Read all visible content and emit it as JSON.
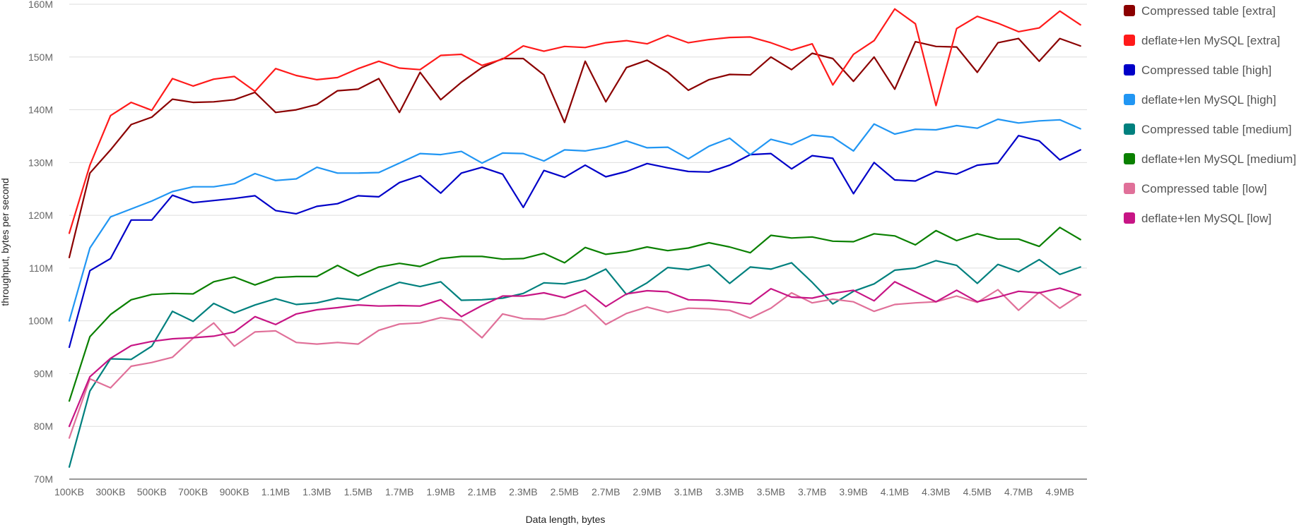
{
  "chart_data": {
    "type": "line",
    "title": "",
    "xlabel": "Data length, bytes",
    "ylabel": "throughput, bytes per second",
    "ylim": [
      70,
      160
    ],
    "y_unit": "M",
    "y_ticks": [
      "70M",
      "80M",
      "90M",
      "100M",
      "110M",
      "120M",
      "130M",
      "140M",
      "150M",
      "160M"
    ],
    "x_tick_labels": [
      "100KB",
      "300KB",
      "500KB",
      "700KB",
      "900KB",
      "1.1MB",
      "1.3MB",
      "1.5MB",
      "1.7MB",
      "1.9MB",
      "2.1MB",
      "2.3MB",
      "2.5MB",
      "2.7MB",
      "2.9MB",
      "3.1MB",
      "3.3MB",
      "3.5MB",
      "3.7MB",
      "3.9MB",
      "4.1MB",
      "4.3MB",
      "4.5MB",
      "4.7MB",
      "4.9MB"
    ],
    "x": [
      "100KB",
      "200KB",
      "300KB",
      "400KB",
      "500KB",
      "600KB",
      "700KB",
      "800KB",
      "900KB",
      "1MB",
      "1.1MB",
      "1.2MB",
      "1.3MB",
      "1.4MB",
      "1.5MB",
      "1.6MB",
      "1.7MB",
      "1.8MB",
      "1.9MB",
      "2MB",
      "2.1MB",
      "2.2MB",
      "2.3MB",
      "2.4MB",
      "2.5MB",
      "2.6MB",
      "2.7MB",
      "2.8MB",
      "2.9MB",
      "3MB",
      "3.1MB",
      "3.2MB",
      "3.3MB",
      "3.4MB",
      "3.5MB",
      "3.6MB",
      "3.7MB",
      "3.8MB",
      "3.9MB",
      "4MB",
      "4.1MB",
      "4.2MB",
      "4.3MB",
      "4.4MB",
      "4.5MB",
      "4.6MB",
      "4.7MB",
      "4.8MB",
      "4.9MB",
      "5MB"
    ],
    "grid": true,
    "legend": "right",
    "series": [
      {
        "name": "Compressed table [extra]",
        "color": "#8b0000",
        "values": [
          112,
          128,
          132.4,
          137.2,
          138.6,
          142,
          141.4,
          141.5,
          141.9,
          143.3,
          139.5,
          140,
          141,
          143.6,
          143.9,
          145.9,
          139.5,
          147.1,
          141.9,
          145.2,
          148,
          149.7,
          149.7,
          146.6,
          137.6,
          149.2,
          141.5,
          148,
          149.4,
          147.1,
          143.7,
          145.7,
          146.7,
          146.6,
          150,
          147.6,
          150.7,
          149.7,
          145.4,
          150,
          143.9,
          152.9,
          152,
          151.9,
          147.1,
          152.7,
          153.5,
          149.2,
          153.5,
          152.1
        ]
      },
      {
        "name": "deflate+len MySQL [extra]",
        "color": "#ff1a1a",
        "values": [
          116.6,
          129.5,
          138.9,
          141.4,
          139.9,
          145.9,
          144.5,
          145.8,
          146.3,
          143.5,
          147.8,
          146.5,
          145.7,
          146.1,
          147.8,
          149.2,
          147.9,
          147.6,
          150.3,
          150.5,
          148.4,
          149.6,
          152.1,
          151.1,
          152,
          151.8,
          152.7,
          153.1,
          152.5,
          154.1,
          152.7,
          153.3,
          153.7,
          153.8,
          152.7,
          151.3,
          152.5,
          144.7,
          150.5,
          153.1,
          159.1,
          156.3,
          140.8,
          155.4,
          157.7,
          156.4,
          154.8,
          155.5,
          158.7,
          156.1
        ]
      },
      {
        "name": "Compressed table [high]",
        "color": "#0000c8",
        "values": [
          95,
          109.5,
          111.8,
          119.1,
          119.1,
          123.8,
          122.4,
          122.8,
          123.2,
          123.7,
          120.9,
          120.3,
          121.7,
          122.2,
          123.7,
          123.5,
          126.2,
          127.5,
          124.2,
          128,
          129.1,
          127.8,
          121.5,
          128.5,
          127.2,
          129.5,
          127.3,
          128.3,
          129.8,
          129,
          128.3,
          128.2,
          129.5,
          131.5,
          131.7,
          128.8,
          131.3,
          130.8,
          124.1,
          130,
          126.7,
          126.5,
          128.3,
          127.8,
          129.5,
          129.9,
          135.1,
          134.1,
          130.5,
          132.4
        ]
      },
      {
        "name": "deflate+len MySQL [high]",
        "color": "#2196f3",
        "values": [
          100,
          113.8,
          119.7,
          121.2,
          122.7,
          124.5,
          125.4,
          125.4,
          126,
          127.9,
          126.6,
          126.9,
          129.1,
          128,
          128,
          128.1,
          129.9,
          131.7,
          131.5,
          132.1,
          129.9,
          131.8,
          131.7,
          130.3,
          132.4,
          132.2,
          132.9,
          134.1,
          132.8,
          132.9,
          130.7,
          133.1,
          134.6,
          131.5,
          134.4,
          133.4,
          135.2,
          134.8,
          132.2,
          137.3,
          135.4,
          136.3,
          136.2,
          137,
          136.5,
          138.2,
          137.5,
          137.9,
          138.1,
          136.4
        ]
      },
      {
        "name": "Compressed table [medium]",
        "color": "#00807e",
        "values": [
          72.3,
          86.7,
          92.8,
          92.7,
          95.2,
          101.8,
          99.9,
          103.3,
          101.5,
          103,
          104.2,
          103.1,
          103.4,
          104.3,
          103.9,
          105.7,
          107.3,
          106.5,
          107.4,
          103.9,
          104,
          104.3,
          105.2,
          107.2,
          107,
          107.9,
          109.8,
          105,
          107.2,
          110.1,
          109.7,
          110.6,
          107.1,
          110.2,
          109.8,
          111,
          107.3,
          103.2,
          105.6,
          107,
          109.6,
          110,
          111.4,
          110.5,
          107.1,
          110.7,
          109.3,
          111.6,
          108.8,
          110.2
        ]
      },
      {
        "name": "deflate+len MySQL [medium]",
        "color": "#0a8000",
        "values": [
          84.8,
          97,
          101.2,
          104,
          105,
          105.2,
          105.1,
          107.4,
          108.3,
          106.8,
          108.2,
          108.4,
          108.4,
          110.5,
          108.5,
          110.2,
          110.9,
          110.3,
          111.8,
          112.2,
          112.2,
          111.7,
          111.8,
          112.8,
          111,
          113.9,
          112.6,
          113.1,
          114,
          113.3,
          113.8,
          114.8,
          114,
          112.9,
          116.2,
          115.7,
          115.9,
          115.1,
          115,
          116.5,
          116.1,
          114.4,
          117.1,
          115.2,
          116.5,
          115.5,
          115.5,
          114.1,
          117.7,
          115.4
        ]
      },
      {
        "name": "Compressed table [low]",
        "color": "#e07099",
        "values": [
          77.8,
          89,
          87.3,
          91.4,
          92.1,
          93.1,
          96.7,
          99.6,
          95.2,
          97.9,
          98.1,
          95.9,
          95.6,
          95.9,
          95.6,
          98.2,
          99.4,
          99.6,
          100.6,
          100.1,
          96.8,
          101.3,
          100.4,
          100.3,
          101.2,
          103,
          99.3,
          101.4,
          102.6,
          101.6,
          102.4,
          102.3,
          102,
          100.5,
          102.4,
          105.3,
          103.4,
          104.1,
          103.6,
          101.8,
          103.1,
          103.4,
          103.6,
          104.7,
          103.5,
          105.9,
          102,
          105.4,
          102.4,
          105
        ]
      },
      {
        "name": "deflate+len MySQL [low]",
        "color": "#c71585",
        "values": [
          80,
          89.4,
          92.9,
          95.3,
          96.1,
          96.6,
          96.8,
          97.1,
          97.9,
          100.8,
          99.3,
          101.3,
          102.1,
          102.5,
          103,
          102.8,
          102.9,
          102.8,
          104,
          100.8,
          102.9,
          104.7,
          104.7,
          105.3,
          104.4,
          105.8,
          102.7,
          105.1,
          105.7,
          105.5,
          104,
          103.9,
          103.6,
          103.2,
          106.1,
          104.5,
          104.3,
          105.2,
          105.8,
          103.8,
          107.4,
          105.5,
          103.6,
          105.8,
          103.6,
          104.5,
          105.6,
          105.3,
          106.2,
          104.9
        ]
      }
    ]
  }
}
